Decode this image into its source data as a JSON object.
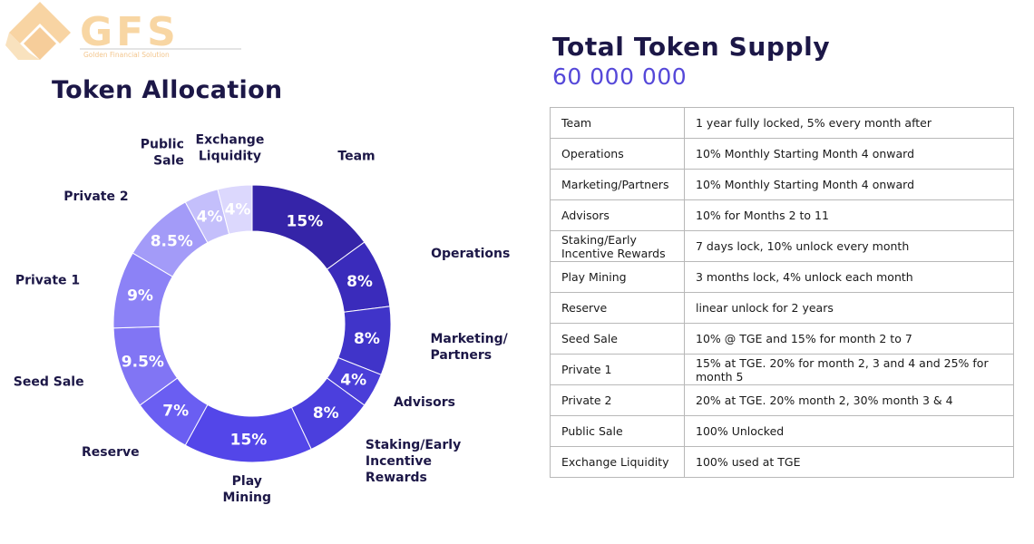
{
  "logo": {
    "text": "GFS",
    "tagline": "Golden Financial Solution"
  },
  "allocation": {
    "title": "Token Allocation"
  },
  "supply": {
    "title": "Total Token Supply",
    "value": "60 000 000"
  },
  "colors": {
    "accent": "#5548d9",
    "title": "#1c1747",
    "logo": "#f5c98c",
    "slice_palette": [
      "#3524a8",
      "#3a2bbb",
      "#3f31c8",
      "#4537cf",
      "#4a3ed8",
      "#5346e9",
      "#5a50f0",
      "#6a5ef2",
      "#8175f4",
      "#8c82f6",
      "#9a92f7",
      "#b3acf9",
      "#cac5fb",
      "#dcd8fd"
    ]
  },
  "chart_data": {
    "type": "pie",
    "donut": true,
    "categories": [
      "Team",
      "Operations",
      "Marketing/ Partners",
      "Advisors",
      "Staking/Early Incentive Rewards",
      "Play Mining",
      "Reserve",
      "Seed Sale",
      "Private 1",
      "Private 2",
      "Public Sale",
      "Exchange Liquidity"
    ],
    "values": [
      15,
      8,
      8,
      4,
      8,
      15,
      7,
      9.5,
      9,
      8.5,
      4,
      4
    ],
    "value_labels": [
      "15%",
      "8%",
      "8%",
      "4%",
      "8%",
      "15%",
      "7%",
      "9.5%",
      "9%",
      "8.5%",
      "4%",
      "4%"
    ],
    "slice_colors": [
      "#3524a8",
      "#3a2bbb",
      "#4034c9",
      "#4a3ed8",
      "#4b3fdd",
      "#5346e9",
      "#6a5ef2",
      "#8175f4",
      "#8c82f6",
      "#a39bf8",
      "#c4bffb",
      "#dcd8fd"
    ],
    "label_colors": [
      "#ffffff",
      "#ffffff",
      "#ffffff",
      "#ffffff",
      "#ffffff",
      "#ffffff",
      "#ffffff",
      "#ffffff",
      "#ffffff",
      "#ffffff",
      "#ffffff",
      "#ffffff"
    ]
  },
  "vesting": {
    "rows": [
      {
        "name": "Team",
        "schedule": "1 year fully locked, 5% every month after"
      },
      {
        "name": "Operations",
        "schedule": "10% Monthly Starting Month 4 onward"
      },
      {
        "name": "Marketing/Partners",
        "schedule": "10% Monthly Starting Month 4 onward"
      },
      {
        "name": "Advisors",
        "schedule": "10% for Months 2 to 11"
      },
      {
        "name": "Staking/Early Incentive Rewards",
        "schedule": "7 days lock, 10% unlock every month"
      },
      {
        "name": "Play Mining",
        "schedule": "3 months lock, 4% unlock each month"
      },
      {
        "name": "Reserve",
        "schedule": "linear unlock for 2 years"
      },
      {
        "name": "Seed Sale",
        "schedule": "10% @ TGE and 15% for month 2 to 7"
      },
      {
        "name": "Private 1",
        "schedule": "15% at TGE. 20% for month 2, 3 and 4 and 25% for month 5"
      },
      {
        "name": "Private 2",
        "schedule": "20% at TGE. 20% month 2, 30% month 3 & 4"
      },
      {
        "name": "Public Sale",
        "schedule": "100% Unlocked"
      },
      {
        "name": "Exchange Liquidity",
        "schedule": "100% used at TGE"
      }
    ]
  }
}
